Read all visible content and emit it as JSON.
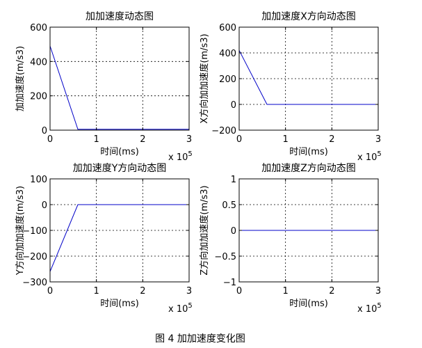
{
  "caption": "图 4  加加速度变化图",
  "chart_data": [
    {
      "type": "line",
      "title": "加加速度动态图",
      "xlabel": "时间(ms)",
      "ylabel": "加加速度(m/s3)",
      "x_exponent": "x 10",
      "x_exponent_power": "5",
      "xlim": [
        0,
        3
      ],
      "ylim": [
        0,
        600
      ],
      "xticks": [
        0,
        1,
        2,
        3
      ],
      "yticks": [
        0,
        200,
        400,
        600
      ],
      "grid": true,
      "series": [
        {
          "x": [
            0,
            0.6,
            3
          ],
          "y": [
            490,
            5,
            5
          ],
          "color": "#0000c8"
        }
      ]
    },
    {
      "type": "line",
      "title": "加加速度X方向动态图",
      "xlabel": "时间(ms)",
      "ylabel": "X方向加加速度(m/s3)",
      "x_exponent": "x 10",
      "x_exponent_power": "5",
      "xlim": [
        0,
        3
      ],
      "ylim": [
        -200,
        600
      ],
      "xticks": [
        0,
        1,
        2,
        3
      ],
      "yticks": [
        -200,
        0,
        200,
        400,
        600
      ],
      "grid": true,
      "series": [
        {
          "x": [
            0,
            0.6,
            3
          ],
          "y": [
            420,
            0,
            0
          ],
          "color": "#0000c8"
        }
      ]
    },
    {
      "type": "line",
      "title": "加加速度Y方向动态图",
      "xlabel": "时间(ms)",
      "ylabel": "Y方向加加速度(m/s3)",
      "x_exponent": "x 10",
      "x_exponent_power": "5",
      "xlim": [
        0,
        3
      ],
      "ylim": [
        -300,
        100
      ],
      "xticks": [
        0,
        1,
        2,
        3
      ],
      "yticks": [
        -300,
        -200,
        -100,
        0,
        100
      ],
      "grid": true,
      "series": [
        {
          "x": [
            0,
            0.6,
            3
          ],
          "y": [
            -260,
            0,
            0
          ],
          "color": "#0000c8"
        }
      ]
    },
    {
      "type": "line",
      "title": "加加速度Z方向动态图",
      "xlabel": "时间(ms)",
      "ylabel": "Z方向加加速度(m/s3)",
      "x_exponent": "x 10",
      "x_exponent_power": "5",
      "xlim": [
        0,
        3
      ],
      "ylim": [
        -1,
        1
      ],
      "xticks": [
        0,
        1,
        2,
        3
      ],
      "yticks": [
        -1,
        -0.5,
        0,
        0.5,
        1
      ],
      "grid": true,
      "series": [
        {
          "x": [
            0,
            3
          ],
          "y": [
            0,
            0
          ],
          "color": "#0000c8"
        }
      ]
    }
  ]
}
